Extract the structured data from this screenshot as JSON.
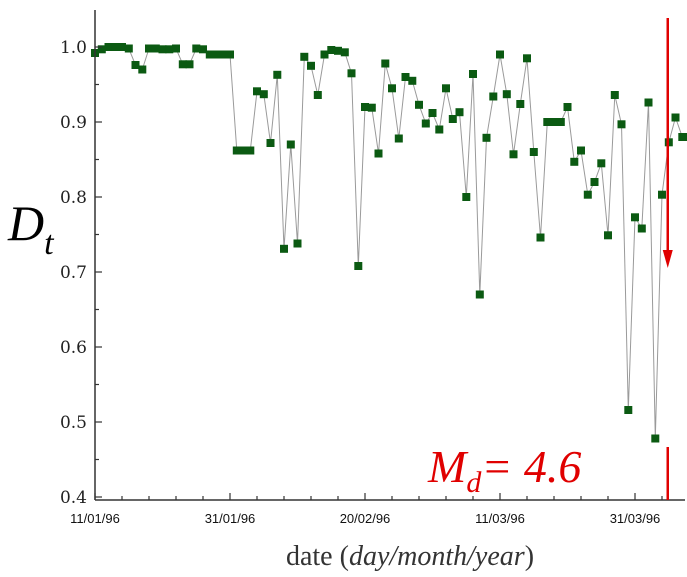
{
  "chart_data": {
    "type": "scatter",
    "connected": true,
    "xlabel_prefix": "date (",
    "xlabel_italic": "day/month/year",
    "xlabel_suffix": ")",
    "ylabel_main": "D",
    "ylabel_sub": "t",
    "ylim": [
      0.4,
      1.05
    ],
    "yticks": [
      "0.4",
      "0.5",
      "0.6",
      "0.7",
      "0.8",
      "0.9",
      "1.0"
    ],
    "xlim": [
      "1996-01-11",
      "1996-04-08"
    ],
    "xticks": [
      "11/01/96",
      "31/01/96",
      "20/02/96",
      "11/03/96",
      "31/03/96"
    ],
    "grid": false,
    "colors": {
      "marker": "#0b5a12",
      "line": "#9a9a9a",
      "annotation": "#e00000"
    },
    "x": [
      "1996-01-11",
      "1996-01-12",
      "1996-01-13",
      "1996-01-14",
      "1996-01-15",
      "1996-01-16",
      "1996-01-17",
      "1996-01-18",
      "1996-01-19",
      "1996-01-20",
      "1996-01-21",
      "1996-01-22",
      "1996-01-23",
      "1996-01-24",
      "1996-01-25",
      "1996-01-26",
      "1996-01-27",
      "1996-01-28",
      "1996-01-29",
      "1996-01-30",
      "1996-01-31",
      "1996-02-01",
      "1996-02-02",
      "1996-02-03",
      "1996-02-04",
      "1996-02-05",
      "1996-02-06",
      "1996-02-07",
      "1996-02-08",
      "1996-02-09",
      "1996-02-10",
      "1996-02-11",
      "1996-02-12",
      "1996-02-13",
      "1996-02-14",
      "1996-02-15",
      "1996-02-16",
      "1996-02-17",
      "1996-02-18",
      "1996-02-19",
      "1996-02-20",
      "1996-02-21",
      "1996-02-22",
      "1996-02-23",
      "1996-02-24",
      "1996-02-25",
      "1996-02-26",
      "1996-02-27",
      "1996-02-28",
      "1996-02-29",
      "1996-03-01",
      "1996-03-02",
      "1996-03-03",
      "1996-03-04",
      "1996-03-05",
      "1996-03-06",
      "1996-03-07",
      "1996-03-08",
      "1996-03-09",
      "1996-03-10",
      "1996-03-11",
      "1996-03-12",
      "1996-03-13",
      "1996-03-14",
      "1996-03-15",
      "1996-03-16",
      "1996-03-17",
      "1996-03-18",
      "1996-03-19",
      "1996-03-20",
      "1996-03-21",
      "1996-03-22",
      "1996-03-23",
      "1996-03-24",
      "1996-03-25",
      "1996-03-26",
      "1996-03-27",
      "1996-03-28",
      "1996-03-29",
      "1996-03-30",
      "1996-03-31",
      "1996-04-01",
      "1996-04-02",
      "1996-04-03",
      "1996-04-04",
      "1996-04-05",
      "1996-04-06",
      "1996-04-07",
      "1996-04-08"
    ],
    "series": [
      {
        "values": [
          0.992,
          0.997,
          1.0,
          1.0,
          1.0,
          0.998,
          0.976,
          0.97,
          0.998,
          0.998,
          0.997,
          0.997,
          0.998,
          0.977,
          0.977,
          0.998,
          0.997,
          0.99,
          0.99,
          0.99,
          0.99,
          0.862,
          0.862,
          0.862,
          0.941,
          0.937,
          0.872,
          0.963,
          0.731,
          0.87,
          0.738,
          0.987,
          0.975,
          0.936,
          0.99,
          0.996,
          0.995,
          0.993,
          0.965,
          0.708,
          0.92,
          0.919,
          0.858,
          0.978,
          0.945,
          0.878,
          0.96,
          0.955,
          0.923,
          0.898,
          0.912,
          0.89,
          0.945,
          0.904,
          0.913,
          0.8,
          0.964,
          0.67,
          0.879,
          0.934,
          0.99,
          0.937,
          0.857,
          0.924,
          0.985,
          0.86,
          0.746,
          0.9,
          0.9,
          0.9,
          0.92,
          0.847,
          0.862,
          0.803,
          0.82,
          0.845,
          0.749,
          0.936,
          0.897,
          0.516,
          0.773,
          0.758,
          0.926,
          0.478,
          0.803,
          0.873,
          0.906,
          0.88,
          0.88
        ]
      }
    ],
    "annotation": {
      "label": "M",
      "sub": "d",
      "rest": "= 4.6",
      "date": "1996-04-05"
    }
  }
}
